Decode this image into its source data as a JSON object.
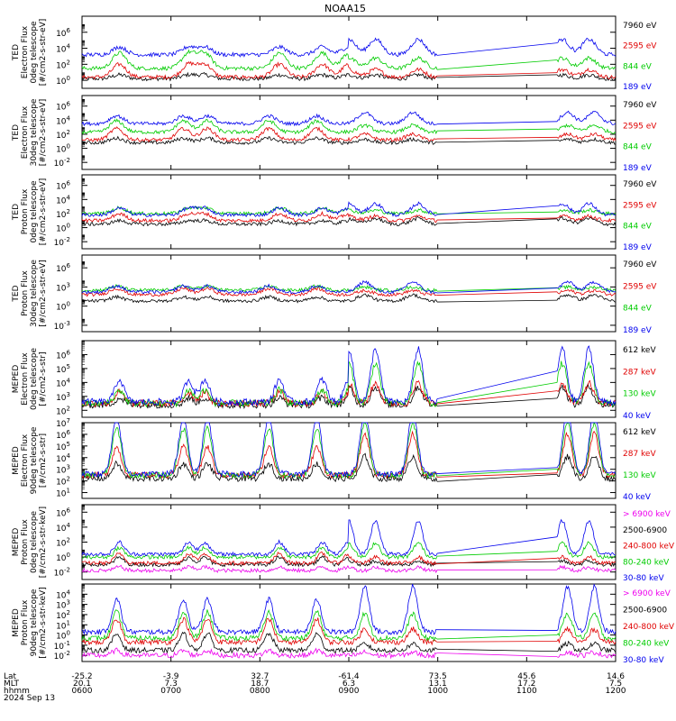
{
  "title": "NOAA15",
  "chart_data": [
    {
      "type": "line",
      "ylabel": [
        "TED",
        "Electron Flux",
        "0deg telescope",
        "[#/cm2-s-str-eV]"
      ],
      "y_ticks": [
        {
          "label": "10",
          "exp": "6"
        },
        {
          "label": "10",
          "exp": "4"
        },
        {
          "label": "10",
          "exp": "2"
        },
        {
          "label": "10",
          "exp": "0"
        }
      ],
      "y_log_range": [
        -1,
        8
      ],
      "series": [
        {
          "name": "7960 eV",
          "color": "#000000",
          "base": 0.2,
          "amp": [
            0.3,
            0.3
          ]
        },
        {
          "name": "2595 eV",
          "color": "#e00000",
          "base": 0.4,
          "amp": [
            1.0,
            0.6
          ]
        },
        {
          "name": "844 eV",
          "color": "#00cc00",
          "base": 1.5,
          "amp": [
            1.2,
            0.8
          ]
        },
        {
          "name": "189 eV",
          "color": "#0000ee",
          "base": 3.2,
          "amp": [
            0.6,
            1.2
          ]
        }
      ]
    },
    {
      "type": "line",
      "ylabel": [
        "TED",
        "Electron Flux",
        "30deg telescope",
        "[#/cm2-s-str-eV]"
      ],
      "y_ticks": [
        {
          "label": "10",
          "exp": "6"
        },
        {
          "label": "10",
          "exp": "4"
        },
        {
          "label": "10",
          "exp": "2"
        },
        {
          "label": "10",
          "exp": "0"
        },
        {
          "label": "10",
          "exp": "-2"
        }
      ],
      "y_log_range": [
        -3,
        7.5
      ],
      "series": [
        {
          "name": "7960 eV",
          "color": "#000000",
          "base": 0.8,
          "amp": [
            0.4,
            0.3
          ]
        },
        {
          "name": "2595 eV",
          "color": "#e00000",
          "base": 1.2,
          "amp": [
            1.0,
            0.5
          ]
        },
        {
          "name": "844 eV",
          "color": "#00cc00",
          "base": 2.3,
          "amp": [
            1.0,
            0.6
          ]
        },
        {
          "name": "189 eV",
          "color": "#0000ee",
          "base": 3.5,
          "amp": [
            0.7,
            1.0
          ]
        }
      ]
    },
    {
      "type": "line",
      "ylabel": [
        "TED",
        "Proton Flux",
        "0deg telescope",
        "[#/cm2-s-str-eV]"
      ],
      "y_ticks": [
        {
          "label": "10",
          "exp": "6"
        },
        {
          "label": "10",
          "exp": "4"
        },
        {
          "label": "10",
          "exp": "2"
        },
        {
          "label": "10",
          "exp": "0"
        },
        {
          "label": "10",
          "exp": "-2"
        }
      ],
      "y_log_range": [
        -3,
        7.5
      ],
      "series": [
        {
          "name": "7960 eV",
          "color": "#000000",
          "base": 0.5,
          "amp": [
            0.3,
            0.5
          ]
        },
        {
          "name": "2595 eV",
          "color": "#e00000",
          "base": 1.0,
          "amp": [
            0.6,
            0.4
          ]
        },
        {
          "name": "844 eV",
          "color": "#00cc00",
          "base": 2.0,
          "amp": [
            0.5,
            0.3
          ]
        },
        {
          "name": "189 eV",
          "color": "#0000ee",
          "base": 1.8,
          "amp": [
            0.6,
            1.0
          ]
        }
      ]
    },
    {
      "type": "line",
      "ylabel": [
        "TED",
        "Proton Flux",
        "30deg telescope",
        "[#/cm2-s-str-eV]"
      ],
      "y_ticks": [
        {
          "label": "10",
          "exp": "6"
        },
        {
          "label": "10",
          "exp": "3"
        },
        {
          "label": "10",
          "exp": "0"
        },
        {
          "label": "10",
          "exp": "-3"
        }
      ],
      "y_log_range": [
        -4,
        8
      ],
      "series": [
        {
          "name": "7960 eV",
          "color": "#000000",
          "base": 0.8,
          "amp": [
            0.4,
            0.6
          ]
        },
        {
          "name": "2595 eV",
          "color": "#e00000",
          "base": 1.8,
          "amp": [
            0.6,
            0.4
          ]
        },
        {
          "name": "844 eV",
          "color": "#00cc00",
          "base": 2.5,
          "amp": [
            0.4,
            0.3
          ]
        },
        {
          "name": "189 eV",
          "color": "#0000ee",
          "base": 2.2,
          "amp": [
            0.6,
            1.0
          ]
        }
      ]
    },
    {
      "type": "line",
      "ylabel": [
        "MEPED",
        "Electron Flux",
        "0deg telescope",
        "[#/cm2-s-str]"
      ],
      "y_ticks": [
        {
          "label": "10",
          "exp": "6"
        },
        {
          "label": "10",
          "exp": "5"
        },
        {
          "label": "10",
          "exp": "4"
        },
        {
          "label": "10",
          "exp": "3"
        },
        {
          "label": "10",
          "exp": "2"
        }
      ],
      "y_log_range": [
        1.5,
        7
      ],
      "series": [
        {
          "name": "612 keV",
          "color": "#000000",
          "base": 2.4,
          "amp": [
            0.3,
            0.8
          ]
        },
        {
          "name": "287 keV",
          "color": "#e00000",
          "base": 2.5,
          "amp": [
            0.5,
            0.9
          ]
        },
        {
          "name": "130 keV",
          "color": "#00cc00",
          "base": 2.5,
          "amp": [
            0.6,
            1.8
          ]
        },
        {
          "name": "40 keV",
          "color": "#0000ee",
          "base": 2.6,
          "amp": [
            1.0,
            2.4
          ]
        }
      ]
    },
    {
      "type": "line",
      "ylabel": [
        "MEPED",
        "Electron Flux",
        "90deg telescope",
        "[#/cm2-s-str]"
      ],
      "y_ticks": [
        {
          "label": "10",
          "exp": "7"
        },
        {
          "label": "10",
          "exp": "6"
        },
        {
          "label": "10",
          "exp": "5"
        },
        {
          "label": "10",
          "exp": "4"
        },
        {
          "label": "10",
          "exp": "3"
        },
        {
          "label": "10",
          "exp": "2"
        },
        {
          "label": "10",
          "exp": "1"
        }
      ],
      "y_log_range": [
        0.5,
        7
      ],
      "series": [
        {
          "name": "612 keV",
          "color": "#000000",
          "base": 2.2,
          "amp": [
            0.8,
            1.2
          ]
        },
        {
          "name": "287 keV",
          "color": "#e00000",
          "base": 2.5,
          "amp": [
            1.5,
            2.2
          ]
        },
        {
          "name": "130 keV",
          "color": "#00cc00",
          "base": 2.5,
          "amp": [
            2.5,
            2.8
          ]
        },
        {
          "name": "40 keV",
          "color": "#0000ee",
          "base": 2.6,
          "amp": [
            3.0,
            3.5
          ]
        }
      ]
    },
    {
      "type": "line",
      "ylabel": [
        "MEPED",
        "Proton Flux",
        "0deg telescope",
        "[#/cm2-s-str-keV]"
      ],
      "y_ticks": [
        {
          "label": "10",
          "exp": "6"
        },
        {
          "label": "10",
          "exp": "4"
        },
        {
          "label": "10",
          "exp": "2"
        },
        {
          "label": "10",
          "exp": "0"
        },
        {
          "label": "10",
          "exp": "-2"
        }
      ],
      "y_log_range": [
        -3,
        7
      ],
      "series": [
        {
          "name": "> 6900 keV",
          "color": "#ee00ee",
          "base": -1.8,
          "amp": [
            0.3,
            0.3
          ]
        },
        {
          "name": "2500-6900",
          "color": "#000000",
          "base": -1.0,
          "amp": [
            0.6,
            0.3
          ]
        },
        {
          "name": "240-800 keV",
          "color": "#e00000",
          "base": -0.8,
          "amp": [
            0.8,
            0.5
          ]
        },
        {
          "name": "80-240 keV",
          "color": "#00cc00",
          "base": 0.0,
          "amp": [
            0.8,
            1.2
          ]
        },
        {
          "name": "30-80 keV",
          "color": "#0000ee",
          "base": 0.4,
          "amp": [
            1.0,
            2.8
          ]
        }
      ]
    },
    {
      "type": "line",
      "ylabel": [
        "MEPED",
        "Proton Flux",
        "90deg telescope",
        "[#/cm2-s-str-keV]"
      ],
      "y_ticks": [
        {
          "label": "10",
          "exp": "4"
        },
        {
          "label": "10",
          "exp": "3"
        },
        {
          "label": "10",
          "exp": "2"
        },
        {
          "label": "10",
          "exp": "1"
        },
        {
          "label": "10",
          "exp": "0"
        },
        {
          "label": "10",
          "exp": "-1"
        },
        {
          "label": "10",
          "exp": "-2"
        }
      ],
      "y_log_range": [
        -2.6,
        5
      ],
      "series": [
        {
          "name": "> 6900 keV",
          "color": "#ee00ee",
          "base": -2.0,
          "amp": [
            0.3,
            0.2
          ]
        },
        {
          "name": "2500-6900",
          "color": "#000000",
          "base": -1.5,
          "amp": [
            1.0,
            0.4
          ]
        },
        {
          "name": "240-800 keV",
          "color": "#e00000",
          "base": -0.7,
          "amp": [
            1.4,
            0.8
          ]
        },
        {
          "name": "80-240 keV",
          "color": "#00cc00",
          "base": -0.3,
          "amp": [
            1.6,
            1.5
          ]
        },
        {
          "name": "30-80 keV",
          "color": "#0000ee",
          "base": 0.3,
          "amp": [
            2.0,
            2.8
          ]
        }
      ]
    }
  ],
  "x_axis": {
    "row_labels": [
      "Lat",
      "MLT",
      "hhmm",
      "2024 Sep 13"
    ],
    "ticks": [
      {
        "lat": "-25.2",
        "mlt": "20.1",
        "hhmm": "0600",
        "frac": 0.0
      },
      {
        "lat": "-3.9",
        "mlt": "7.3",
        "hhmm": "0700",
        "frac": 0.1667
      },
      {
        "lat": "32.7",
        "mlt": "18.7",
        "hhmm": "0800",
        "frac": 0.3333
      },
      {
        "lat": "-61.4",
        "mlt": "6.3",
        "hhmm": "0900",
        "frac": 0.5
      },
      {
        "lat": "73.5",
        "mlt": "13.1",
        "hhmm": "1000",
        "frac": 0.6667
      },
      {
        "lat": "45.6",
        "mlt": "17.2",
        "hhmm": "1100",
        "frac": 0.8333
      },
      {
        "lat": "14.6",
        "mlt": "7.5",
        "hhmm": "1200",
        "frac": 1.0
      }
    ],
    "data_gap": [
      0.667,
      0.89
    ]
  }
}
